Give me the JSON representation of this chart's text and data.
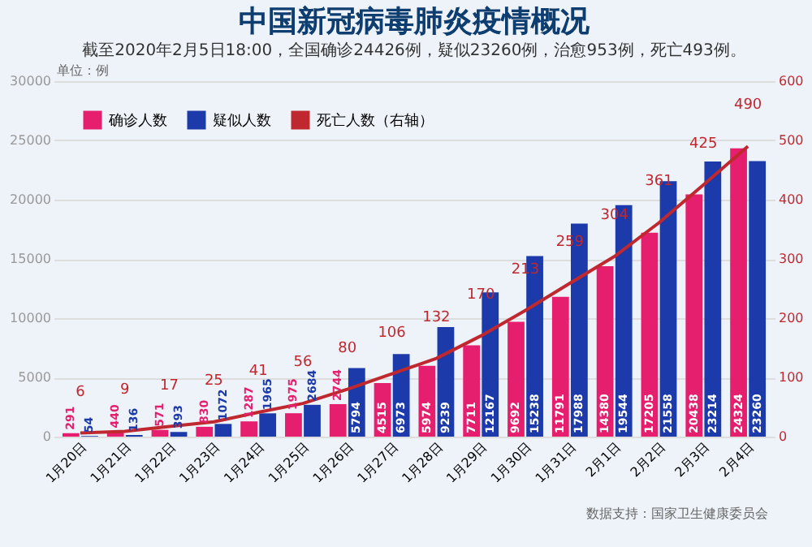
{
  "chart_data": {
    "type": "bar",
    "title": "中国新冠病毒肺炎疫情概况",
    "subtitle": "截至2020年2月5日18:00，全国确诊24426例，疑似23260例，治愈953例，死亡493例。",
    "annotations": [
      "单位：例",
      "数据支持：国家卫生健康委员会"
    ],
    "categories": [
      "1月20日",
      "1月21日",
      "1月22日",
      "1月23日",
      "1月24日",
      "1月25日",
      "1月26日",
      "1月27日",
      "1月28日",
      "1月29日",
      "1月30日",
      "1月31日",
      "2月1日",
      "2月2日",
      "2月3日",
      "2月4日"
    ],
    "series": [
      {
        "name": "确诊人数",
        "type": "bar",
        "color": "#e61e6e",
        "values": [
          291,
          440,
          571,
          830,
          1287,
          1975,
          2744,
          4515,
          5974,
          7711,
          9692,
          11791,
          14380,
          17205,
          20438,
          24324
        ]
      },
      {
        "name": "疑似人数",
        "type": "bar",
        "color": "#1c3aa9",
        "values": [
          54,
          136,
          393,
          1072,
          1965,
          2684,
          5794,
          6973,
          9239,
          12167,
          15238,
          17988,
          19544,
          21558,
          23214,
          23260
        ]
      },
      {
        "name": "死亡人数（右轴）",
        "type": "line",
        "axis": "y2",
        "color": "#c0282f",
        "values": [
          6,
          9,
          17,
          25,
          41,
          56,
          80,
          106,
          132,
          170,
          213,
          259,
          304,
          361,
          425,
          490
        ]
      }
    ],
    "ylim": [
      0,
      30000
    ],
    "yticks": [
      0,
      5000,
      10000,
      15000,
      20000,
      25000,
      30000
    ],
    "y2lim": [
      0,
      600
    ],
    "y2ticks": [
      0,
      100,
      200,
      300,
      400,
      500,
      600
    ],
    "grid": "y",
    "legend": "top left",
    "data_labels": true
  }
}
